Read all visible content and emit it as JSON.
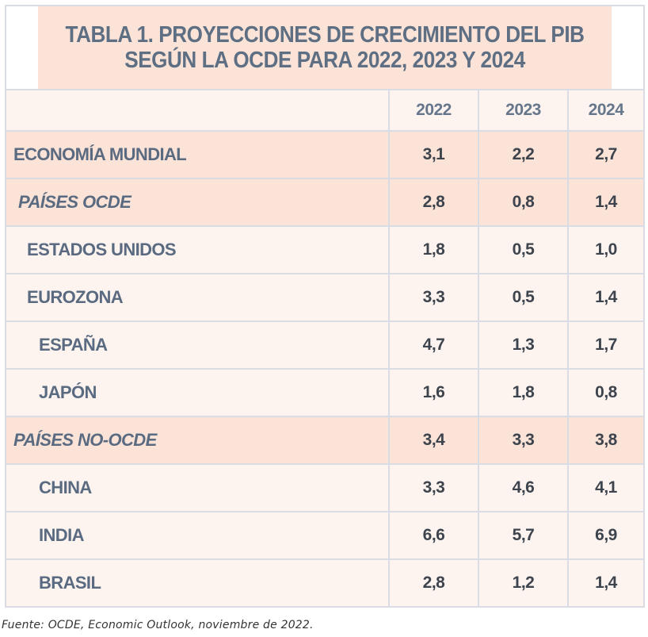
{
  "table": {
    "title_line1": "TABLA 1. PROYECCIONES DE CRECIMIENTO DEL PIB",
    "title_line2": "SEGÚN LA OCDE PARA 2022, 2023 Y 2024",
    "years": [
      "2022",
      "2023",
      "2024"
    ],
    "rows": [
      {
        "label": "ECONOMÍA MUNDIAL",
        "v2022": "3,1",
        "v2023": "2,2",
        "v2024": "2,7"
      },
      {
        "label": "PAÍSES OCDE",
        "v2022": "2,8",
        "v2023": "0,8",
        "v2024": "1,4"
      },
      {
        "label": "ESTADOS UNIDOS",
        "v2022": "1,8",
        "v2023": "0,5",
        "v2024": "1,0"
      },
      {
        "label": "EUROZONA",
        "v2022": "3,3",
        "v2023": "0,5",
        "v2024": "1,4"
      },
      {
        "label": "ESPAÑA",
        "v2022": "4,7",
        "v2023": "1,3",
        "v2024": "1,7"
      },
      {
        "label": "JAPÓN",
        "v2022": "1,6",
        "v2023": "1,8",
        "v2024": "0,8"
      },
      {
        "label": "PAÍSES NO-OCDE",
        "v2022": "3,4",
        "v2023": "3,3",
        "v2024": "3,8"
      },
      {
        "label": "CHINA",
        "v2022": "3,3",
        "v2023": "4,6",
        "v2024": "4,1"
      },
      {
        "label": "INDIA",
        "v2022": "6,6",
        "v2023": "5,7",
        "v2024": "6,9"
      },
      {
        "label": "BRASIL",
        "v2022": "2,8",
        "v2023": "1,2",
        "v2024": "1,4"
      }
    ]
  },
  "source": "Fuente: OCDE, Economic Outlook, noviembre de 2022.",
  "colors": {
    "header_bg": "#fbe3d7",
    "body_bg": "#fdf3ef",
    "text": "#5a6b81"
  },
  "chart_data": {
    "type": "table",
    "title": "TABLA 1. PROYECCIONES DE CRECIMIENTO DEL PIB SEGÚN LA OCDE PARA 2022, 2023 Y 2024",
    "columns": [
      "2022",
      "2023",
      "2024"
    ],
    "rows": [
      "ECONOMÍA MUNDIAL",
      "PAÍSES OCDE",
      "ESTADOS UNIDOS",
      "EUROZONA",
      "ESPAÑA",
      "JAPÓN",
      "PAÍSES NO-OCDE",
      "CHINA",
      "INDIA",
      "BRASIL"
    ],
    "values": [
      [
        3.1,
        2.2,
        2.7
      ],
      [
        2.8,
        0.8,
        1.4
      ],
      [
        1.8,
        0.5,
        1.0
      ],
      [
        3.3,
        0.5,
        1.4
      ],
      [
        4.7,
        1.3,
        1.7
      ],
      [
        1.6,
        1.8,
        0.8
      ],
      [
        3.4,
        3.3,
        3.8
      ],
      [
        3.3,
        4.6,
        4.1
      ],
      [
        6.6,
        5.7,
        6.9
      ],
      [
        2.8,
        1.2,
        1.4
      ]
    ]
  }
}
